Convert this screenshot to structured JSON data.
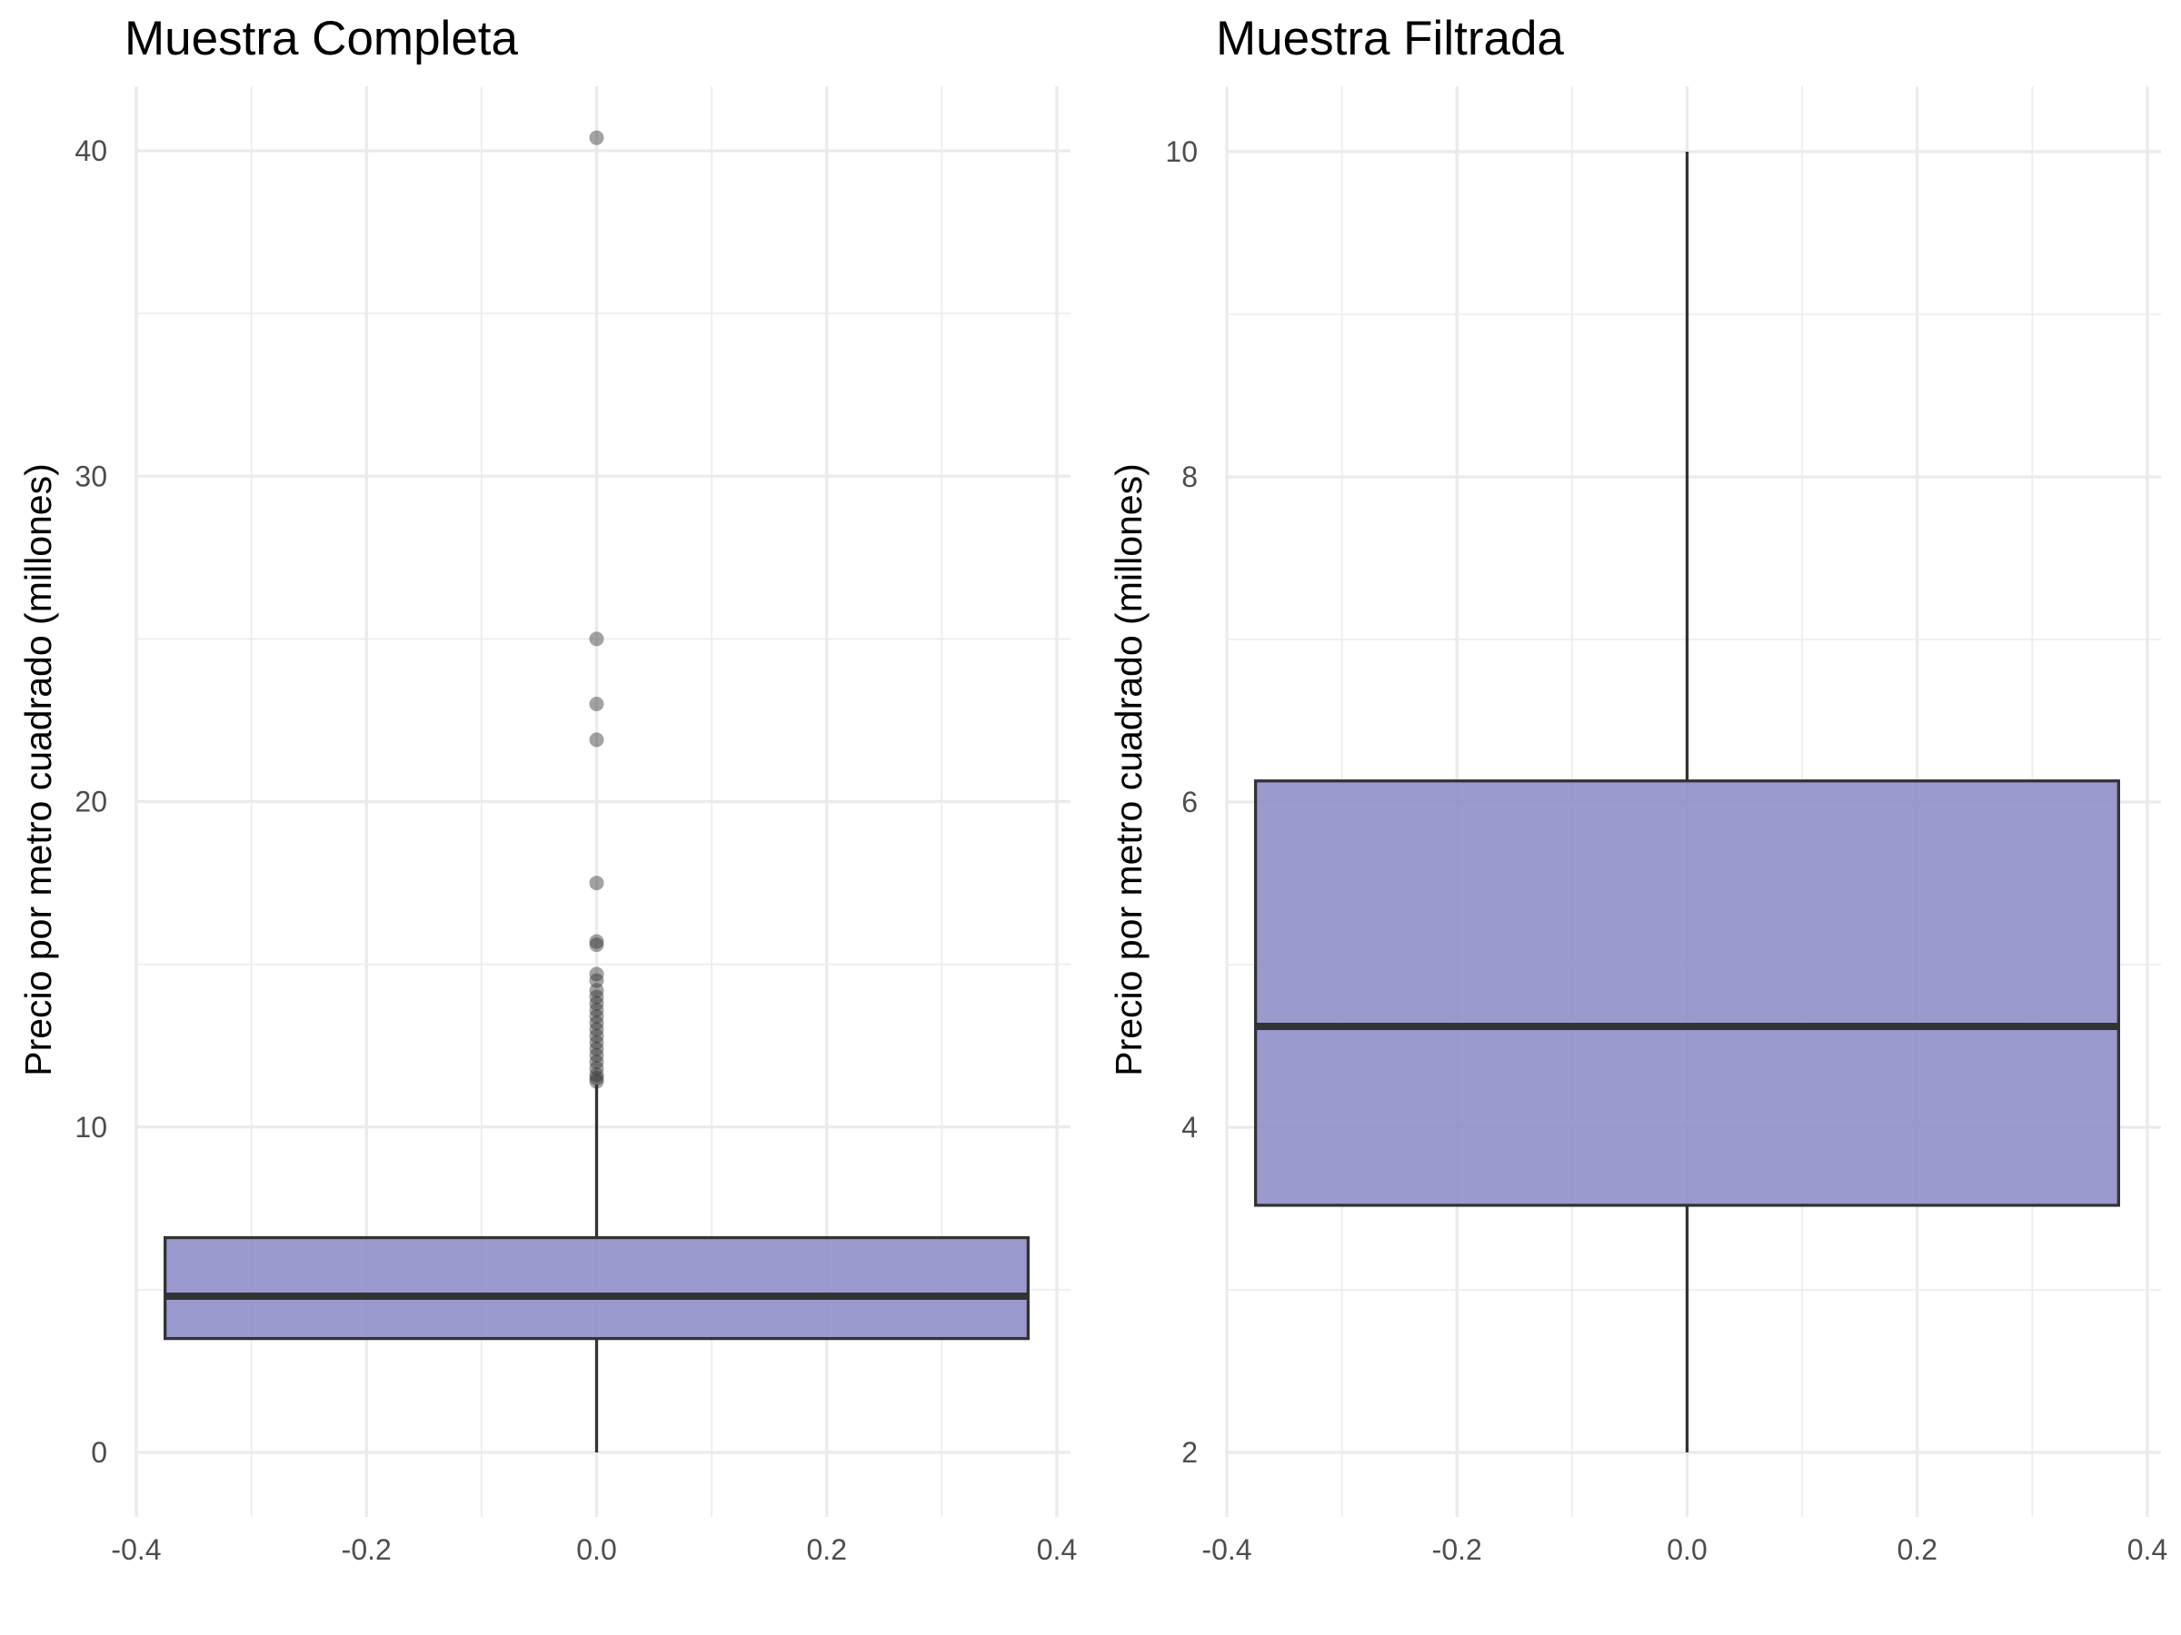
{
  "chart_data": [
    {
      "type": "boxplot",
      "title": "Muestra Completa",
      "xlabel": "",
      "ylabel": "Precio por metro cuadrado (millones)",
      "xlim": [
        -0.4,
        0.4
      ],
      "ylim": [
        0,
        40
      ],
      "x_ticks": [
        "-0.4",
        "-0.2",
        "0.0",
        "0.2",
        "0.4"
      ],
      "y_ticks": [
        "0",
        "10",
        "20",
        "30",
        "40"
      ],
      "grid": true,
      "box_color": "#8c8cc8",
      "box_line_color": "#333333",
      "box": {
        "x_center": 0.0,
        "x_min": -0.375,
        "x_max": 0.375,
        "whisker_low": 0.0,
        "q1": 3.5,
        "median": 4.8,
        "q3": 6.6,
        "whisker_high": 11.3
      },
      "outliers": [
        40.4,
        25.0,
        23.0,
        21.9,
        17.5,
        15.7,
        15.6,
        14.7,
        14.5,
        14.2,
        14.0,
        13.8,
        13.6,
        13.4,
        13.2,
        13.0,
        12.8,
        12.6,
        12.4,
        12.2,
        12.0,
        11.8,
        11.6,
        11.5,
        11.4
      ]
    },
    {
      "type": "boxplot",
      "title": "Muestra Filtrada",
      "xlabel": "",
      "ylabel": "Precio por metro cuadrado (millones)",
      "xlim": [
        -0.4,
        0.4
      ],
      "ylim": [
        2,
        10
      ],
      "x_ticks": [
        "-0.4",
        "-0.2",
        "0.0",
        "0.2",
        "0.4"
      ],
      "y_ticks": [
        "2",
        "4",
        "6",
        "8",
        "10"
      ],
      "grid": true,
      "box_color": "#8c8cc8",
      "box_line_color": "#333333",
      "box": {
        "x_center": 0.0,
        "x_min": -0.375,
        "x_max": 0.375,
        "whisker_low": 2.0,
        "q1": 3.52,
        "median": 4.62,
        "q3": 6.13,
        "whisker_high": 10.0
      },
      "outliers": []
    }
  ]
}
